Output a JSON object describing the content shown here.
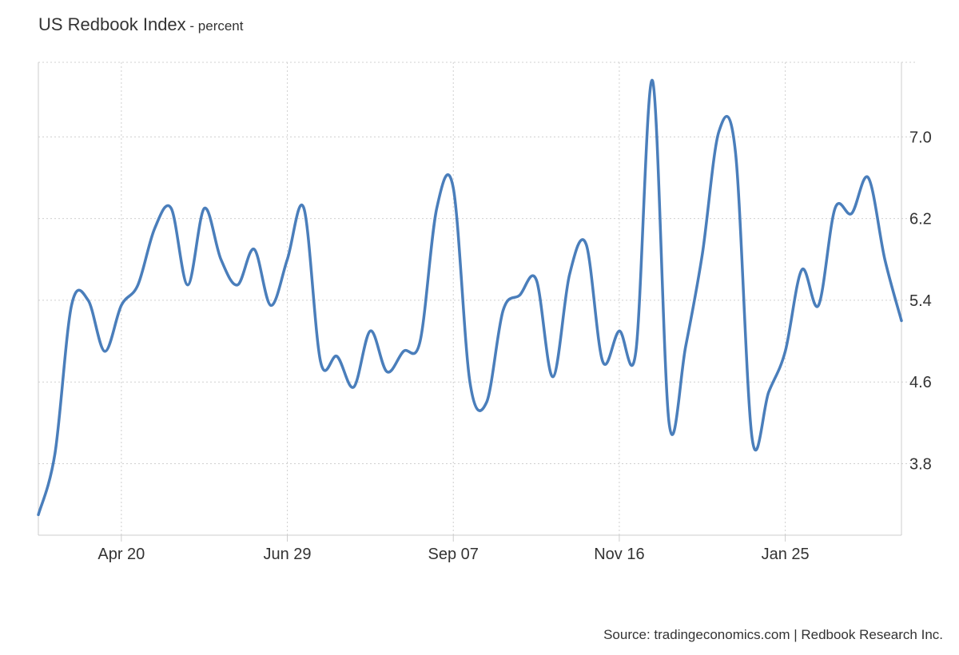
{
  "header": {
    "title": "US Redbook Index",
    "separator": " - ",
    "subtitle": "percent"
  },
  "footer": {
    "source": "Source: tradingeconomics.com | Redbook Research Inc."
  },
  "chart_data": {
    "type": "line",
    "title": "US Redbook Index",
    "subtitle": "percent",
    "xlabel": "",
    "ylabel": "",
    "x_tick_labels": [
      "Apr 20",
      "Jun 29",
      "Sep 07",
      "Nov 16",
      "Jan 25"
    ],
    "y_tick_labels": [
      "3.8",
      "4.6",
      "5.4",
      "6.2",
      "7.0"
    ],
    "y_ticks": [
      3.8,
      4.6,
      5.4,
      6.2,
      7.0
    ],
    "ylim": [
      3.1,
      7.73
    ],
    "x_index_range": [
      0,
      52
    ],
    "x_tick_indices": [
      5,
      15,
      25,
      35,
      45
    ],
    "grid": true,
    "grid_style": "dotted",
    "legend": "none",
    "y_axis_side": "right",
    "series": [
      {
        "color": "#4a7ebb",
        "values": [
          3.3,
          3.9,
          5.35,
          5.4,
          4.9,
          5.35,
          5.55,
          6.1,
          6.3,
          5.55,
          6.3,
          5.8,
          5.55,
          5.9,
          5.35,
          5.8,
          6.3,
          4.8,
          4.85,
          4.55,
          5.1,
          4.7,
          4.9,
          5.0,
          6.3,
          6.5,
          4.6,
          4.4,
          5.3,
          5.45,
          5.6,
          4.65,
          5.65,
          5.95,
          4.8,
          5.1,
          4.9,
          7.55,
          4.2,
          4.95,
          5.85,
          7.05,
          6.85,
          4.05,
          4.5,
          4.9,
          5.7,
          5.35,
          6.3,
          6.25,
          6.6,
          5.8,
          5.2
        ]
      }
    ]
  },
  "colors": {
    "line": "#4a7ebb",
    "grid": "#d0d0d0",
    "axis": "#cccccc",
    "text": "#333333"
  }
}
